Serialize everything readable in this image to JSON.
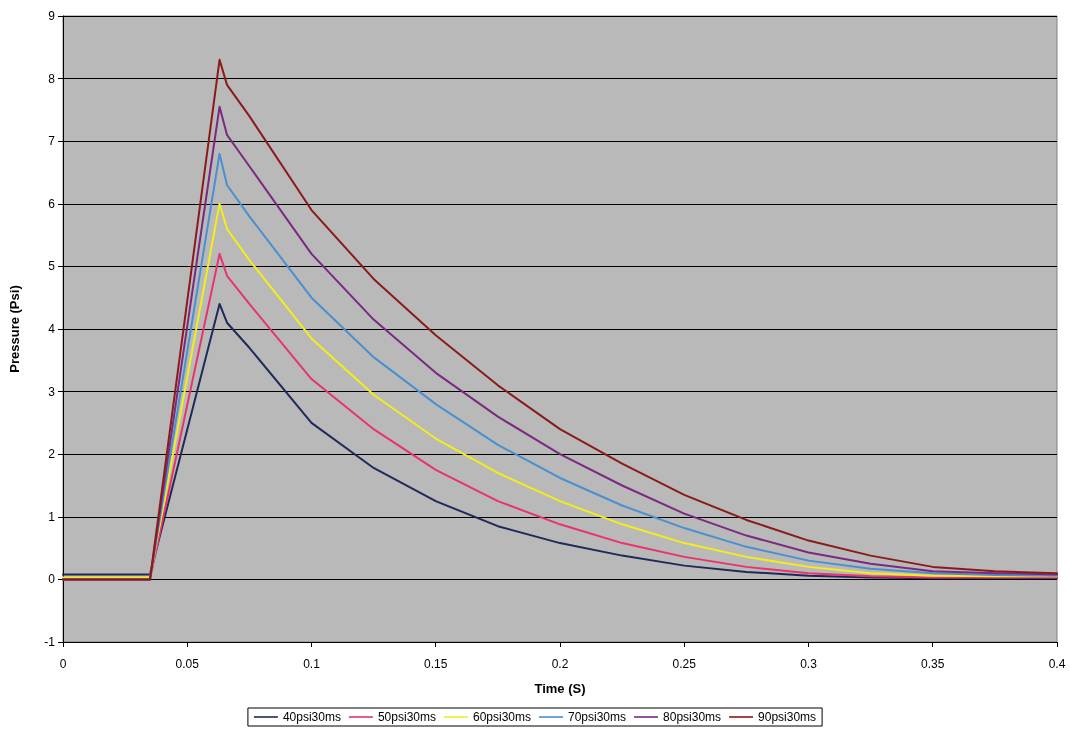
{
  "chart_data": {
    "type": "line",
    "xlabel": "Time (S)",
    "ylabel": "Pressure (Psi)",
    "x": [
      0,
      0.035,
      0.063,
      0.066,
      0.075,
      0.1,
      0.125,
      0.15,
      0.175,
      0.2,
      0.225,
      0.25,
      0.275,
      0.3,
      0.325,
      0.35,
      0.375,
      0.4
    ],
    "series": [
      {
        "name": "40psi30ms",
        "color": "#1f2a5a",
        "values": [
          0.08,
          0.08,
          4.4,
          4.1,
          3.7,
          2.5,
          1.78,
          1.25,
          0.85,
          0.58,
          0.38,
          0.22,
          0.12,
          0.06,
          0.03,
          0.02,
          0.02,
          0.02
        ]
      },
      {
        "name": "50psi30ms",
        "color": "#e8336e",
        "values": [
          0,
          0,
          5.2,
          4.85,
          4.4,
          3.2,
          2.4,
          1.75,
          1.25,
          0.88,
          0.58,
          0.36,
          0.2,
          0.1,
          0.05,
          0.03,
          0.03,
          0.03
        ]
      },
      {
        "name": "60psi30ms",
        "color": "#f2ee1a",
        "values": [
          0.03,
          0.03,
          6.0,
          5.6,
          5.1,
          3.85,
          2.95,
          2.25,
          1.7,
          1.25,
          0.88,
          0.58,
          0.36,
          0.2,
          0.1,
          0.06,
          0.05,
          0.05
        ]
      },
      {
        "name": "70psi30ms",
        "color": "#4a90d0",
        "values": [
          0,
          0,
          6.8,
          6.3,
          5.8,
          4.5,
          3.55,
          2.8,
          2.15,
          1.62,
          1.18,
          0.82,
          0.52,
          0.3,
          0.17,
          0.1,
          0.07,
          0.06
        ]
      },
      {
        "name": "80psi30ms",
        "color": "#7a2a80",
        "values": [
          0,
          0,
          7.55,
          7.1,
          6.6,
          5.2,
          4.15,
          3.3,
          2.6,
          2.0,
          1.5,
          1.05,
          0.7,
          0.43,
          0.25,
          0.13,
          0.1,
          0.08
        ]
      },
      {
        "name": "90psi30ms",
        "color": "#8b1a1a",
        "values": [
          0,
          0,
          8.3,
          7.9,
          7.4,
          5.9,
          4.8,
          3.9,
          3.1,
          2.4,
          1.85,
          1.35,
          0.95,
          0.62,
          0.38,
          0.2,
          0.13,
          0.1
        ]
      }
    ],
    "xlim": [
      0,
      0.4
    ],
    "xticks": [
      0,
      0.05,
      0.1,
      0.15,
      0.2,
      0.25,
      0.3,
      0.35,
      0.4
    ],
    "ylim": [
      -1,
      9
    ],
    "yticks": [
      -1,
      0,
      1,
      2,
      3,
      4,
      5,
      6,
      7,
      8,
      9
    ],
    "grid": "y",
    "legend": "bottom",
    "marker": "none",
    "line_style": "solid"
  }
}
